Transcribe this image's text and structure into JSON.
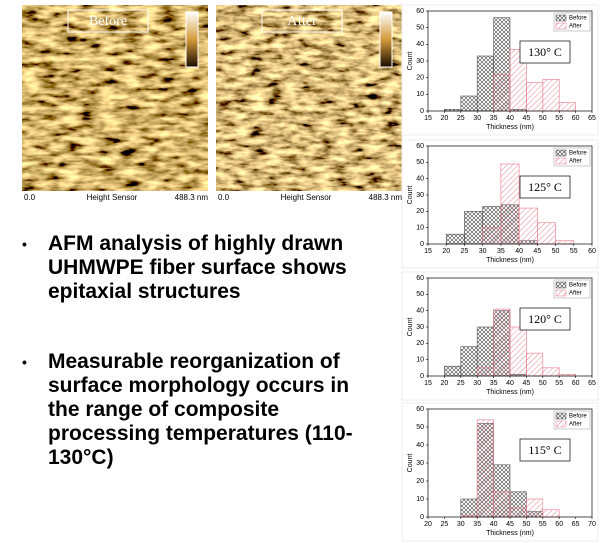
{
  "images": [
    {
      "label": "Before",
      "x_start": "0.0",
      "x_title": "Height Sensor",
      "x_end": "488.3 nm"
    },
    {
      "label": "After",
      "x_start": "0.0",
      "x_title": "Height Sensor",
      "x_end": "488.3 nm"
    }
  ],
  "bullets": [
    "AFM analysis of highly drawn UHMWPE fiber surface shows epitaxial structures",
    "Measurable reorganization of surface morphology occurs in the range of composite processing temperatures (110-130°C)"
  ],
  "chart_data": [
    {
      "type": "histogram",
      "annotation": "130° C",
      "xlabel": "Thickness (nm)",
      "ylabel": "Count",
      "bins": [
        20,
        25,
        30,
        35,
        40,
        45,
        50,
        55,
        60
      ],
      "series": [
        {
          "name": "Before",
          "color": "#555555",
          "values": [
            1,
            9,
            33,
            56,
            1,
            0,
            0,
            0
          ]
        },
        {
          "name": "After",
          "color": "#e8798a",
          "values": [
            0,
            0,
            0,
            22,
            37,
            17,
            19,
            5
          ]
        }
      ],
      "xlim": [
        15,
        65
      ],
      "xticks": [
        15,
        20,
        25,
        30,
        35,
        40,
        45,
        50,
        55,
        60,
        65
      ],
      "ylim": [
        0,
        60
      ],
      "yticks": [
        0,
        10,
        20,
        30,
        40,
        50,
        60
      ],
      "legend": "upper right"
    },
    {
      "type": "histogram",
      "annotation": "125° C",
      "xlabel": "Thickness (nm)",
      "ylabel": "Count",
      "bins": [
        20,
        25,
        30,
        35,
        40,
        45,
        50,
        55
      ],
      "series": [
        {
          "name": "Before",
          "color": "#555555",
          "values": [
            6,
            20,
            23,
            24,
            2,
            0,
            0
          ]
        },
        {
          "name": "After",
          "color": "#e8798a",
          "values": [
            0,
            0,
            10,
            49,
            22,
            13,
            2
          ]
        }
      ],
      "xlim": [
        15,
        60
      ],
      "xticks": [
        15,
        20,
        25,
        30,
        35,
        40,
        45,
        50,
        55,
        60
      ],
      "ylim": [
        0,
        60
      ],
      "yticks": [
        0,
        10,
        20,
        30,
        40,
        50,
        60
      ],
      "legend": "upper right"
    },
    {
      "type": "histogram",
      "annotation": "120° C",
      "xlabel": "Thickness (nm)",
      "ylabel": "Count",
      "bins": [
        20,
        25,
        30,
        35,
        40,
        45,
        50,
        55,
        60
      ],
      "series": [
        {
          "name": "Before",
          "color": "#555555",
          "values": [
            6,
            18,
            30,
            40,
            1,
            0,
            0,
            0
          ]
        },
        {
          "name": "After",
          "color": "#e8798a",
          "values": [
            0,
            0,
            5,
            41,
            30,
            14,
            5,
            1
          ]
        }
      ],
      "xlim": [
        15,
        65
      ],
      "xticks": [
        15,
        20,
        25,
        30,
        35,
        40,
        45,
        50,
        55,
        60,
        65
      ],
      "ylim": [
        0,
        60
      ],
      "yticks": [
        0,
        10,
        20,
        30,
        40,
        50,
        60
      ],
      "legend": "upper right"
    },
    {
      "type": "histogram",
      "annotation": "115° C",
      "xlabel": "Thickness (nm)",
      "ylabel": "Count",
      "bins": [
        30,
        35,
        40,
        45,
        50,
        55,
        60
      ],
      "series": [
        {
          "name": "Before",
          "color": "#555555",
          "values": [
            10,
            52,
            29,
            14,
            3,
            0
          ]
        },
        {
          "name": "After",
          "color": "#e8798a",
          "values": [
            1,
            54,
            14,
            5,
            10,
            4
          ]
        }
      ],
      "xlim": [
        20,
        70
      ],
      "xticks": [
        20,
        25,
        30,
        35,
        40,
        45,
        50,
        55,
        60,
        65,
        70
      ],
      "ylim": [
        0,
        60
      ],
      "yticks": [
        0,
        10,
        20,
        30,
        40,
        50,
        60
      ],
      "legend": "upper right"
    }
  ]
}
